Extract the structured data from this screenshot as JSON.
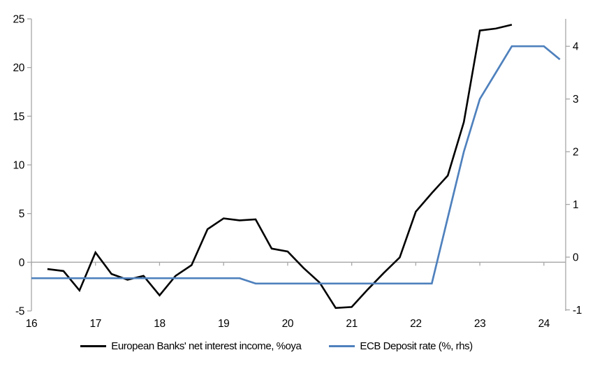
{
  "chart_data": {
    "type": "line",
    "title": "",
    "x_range": [
      16,
      24.34
    ],
    "x_ticks": [
      16,
      17,
      18,
      19,
      20,
      21,
      22,
      23,
      24
    ],
    "x_tick_labels": [
      "16",
      "17",
      "18",
      "19",
      "20",
      "21",
      "22",
      "23",
      "24"
    ],
    "left_axis": {
      "range": [
        -5,
        25
      ],
      "tick_values": [
        -5,
        0,
        5,
        10,
        15,
        20,
        25
      ],
      "tick_labels": [
        "-5",
        "0",
        "5",
        "10",
        "15",
        "20",
        "25"
      ]
    },
    "right_axis": {
      "range": [
        -1.02,
        4.52
      ],
      "tick_values": [
        -1,
        0,
        1,
        2,
        3,
        4
      ],
      "tick_labels": [
        "-1",
        "0",
        "1",
        "2",
        "3",
        "4"
      ]
    },
    "grid": "zero-line-only",
    "legend_position": "bottom",
    "axis_color": "#a6a6a6",
    "series": [
      {
        "name": "European Banks' net interest income, %oya",
        "axis": "left",
        "color": "#000000",
        "stroke_width": 2.6,
        "x": [
          16.25,
          16.5,
          16.75,
          17.0,
          17.25,
          17.5,
          17.75,
          18.0,
          18.25,
          18.5,
          18.75,
          19.0,
          19.25,
          19.5,
          19.75,
          20.0,
          20.25,
          20.5,
          20.75,
          21.0,
          21.25,
          21.5,
          21.75,
          22.0,
          22.25,
          22.5,
          22.75,
          23.0,
          23.25,
          23.5
        ],
        "values": [
          -0.7,
          -0.9,
          -2.9,
          1.0,
          -1.2,
          -1.8,
          -1.4,
          -3.4,
          -1.4,
          -0.3,
          3.4,
          4.5,
          4.3,
          4.4,
          1.4,
          1.1,
          -0.6,
          -2.1,
          -4.7,
          -4.6,
          -2.8,
          -1.1,
          0.5,
          5.2,
          7.1,
          8.9,
          14.4,
          23.8,
          24.0,
          24.4
        ]
      },
      {
        "name": "ECB Deposit rate (%, rhs)",
        "axis": "right",
        "color": "#4f81bd",
        "stroke_width": 2.7,
        "x": [
          16.0,
          16.25,
          16.5,
          16.75,
          17.0,
          17.25,
          17.5,
          17.75,
          18.0,
          18.25,
          18.5,
          18.75,
          19.0,
          19.25,
          19.5,
          19.75,
          20.0,
          20.25,
          20.5,
          20.75,
          21.0,
          21.25,
          21.5,
          21.75,
          22.0,
          22.25,
          22.5,
          22.75,
          23.0,
          23.25,
          23.5,
          23.75,
          24.0,
          24.25
        ],
        "values": [
          -0.4,
          -0.4,
          -0.4,
          -0.4,
          -0.4,
          -0.4,
          -0.4,
          -0.4,
          -0.4,
          -0.4,
          -0.4,
          -0.4,
          -0.4,
          -0.4,
          -0.5,
          -0.5,
          -0.5,
          -0.5,
          -0.5,
          -0.5,
          -0.5,
          -0.5,
          -0.5,
          -0.5,
          -0.5,
          -0.5,
          0.75,
          2.0,
          3.0,
          3.5,
          4.0,
          4.0,
          4.0,
          3.75
        ]
      }
    ]
  },
  "legend": {
    "items": [
      {
        "label": "European Banks' net interest income, %oya",
        "color": "#000000"
      },
      {
        "label": "ECB Deposit rate (%, rhs)",
        "color": "#4f81bd"
      }
    ]
  }
}
